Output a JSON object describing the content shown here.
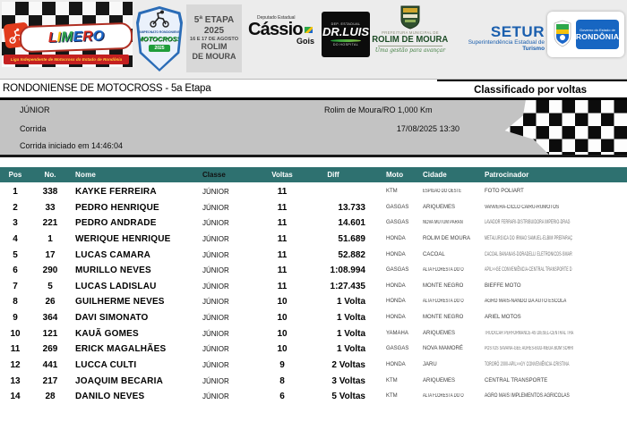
{
  "colors": {
    "teal": "#2e7170",
    "info_gray": "#c3c3c3",
    "band_gray": "#ececec",
    "limero_letters": [
      "#d42a1e",
      "#f4c20d",
      "#2da84a",
      "#1a66c9",
      "#d42a1e",
      "#1a66c9"
    ]
  },
  "header": {
    "limero": {
      "wordmark": "LIMERO",
      "tagline": "Liga Independente de Motocross do Estado de Rondônia"
    },
    "badge": {
      "arc_text": "CAMPEONATO RONDONIENSE",
      "title": "MOTOCROSS",
      "year": "2025"
    },
    "etapa": {
      "lines": [
        "5ª ETAPA",
        "2025",
        "16 E 17 DE AGOSTO",
        "ROLIM",
        "DE MOURA"
      ]
    },
    "cassio": {
      "role": "Deputado Estadual",
      "first": "Cássio",
      "last": "Gois"
    },
    "drluis": {
      "role": "DEP. ESTADUAL",
      "name": "DR.LUIS",
      "sub": "DO HOSPITAL"
    },
    "rolim": {
      "small": "PREFEITURA MUNICIPAL DE",
      "name": "ROLIM DE MOURA",
      "slogan": "Uma gestão para avançar"
    },
    "setur": {
      "name": "SETUR",
      "sub1": "Superintendência Estadual de",
      "sub2": "Turismo"
    },
    "rondonia": {
      "small": "Governo do Estado de",
      "name": "RONDÔNIA"
    }
  },
  "titlebar": {
    "left": "RONDONIENSE DE MOTOCROSS - 5a Etapa",
    "right": "Classificado por voltas"
  },
  "info": {
    "category": "JÚNIOR",
    "track": "Rolim de Moura/RO 1,000 Km",
    "session": "Corrida",
    "datetime": "17/08/2025 13:30",
    "started": "Corrida iniciado em 14:46:04"
  },
  "table": {
    "columns": [
      "Pos",
      "No.",
      "Nome",
      "Classe",
      "Voltas",
      "Diff",
      "Moto",
      "Cidade",
      "Patrocinador"
    ],
    "rows": [
      {
        "pos": "1",
        "no": "338",
        "nome": "KAYKE FERREIRA",
        "classe": "JÚNIOR",
        "voltas": "11",
        "diff": "",
        "moto": "KTM",
        "cidade": "ESPIGAO DO OESTE",
        "patrocinador": "FOTO POLIART"
      },
      {
        "pos": "2",
        "no": "33",
        "nome": "PEDRO HENRIQUE",
        "classe": "JÚNIOR",
        "voltas": "11",
        "diff": "13.733",
        "moto": "GASGAS",
        "cidade": "ARIQUEMES",
        "patrocinador": "VANVERA-CICLO CAIRU-RUMOTOS"
      },
      {
        "pos": "3",
        "no": "221",
        "nome": "PEDRO ANDRADE",
        "classe": "JÚNIOR",
        "voltas": "11",
        "diff": "14.601",
        "moto": "GASGAS",
        "cidade": "NOVA MUTUM PARAN",
        "patrocinador": "LAVADOR FERRARI-DISTRIBUIDORA IMPÉRIO-DRAG"
      },
      {
        "pos": "4",
        "no": "1",
        "nome": "WERIQUE HENRIQUE",
        "classe": "JÚNIOR",
        "voltas": "11",
        "diff": "51.689",
        "moto": "HONDA",
        "cidade": "ROLIM DE MOURA",
        "patrocinador": "METALÚRGICA DO IRMÃO SAMUEL-ELBIM PREPARAÇ"
      },
      {
        "pos": "5",
        "no": "17",
        "nome": "LUCAS CAMARA",
        "classe": "JÚNIOR",
        "voltas": "11",
        "diff": "52.882",
        "moto": "HONDA",
        "cidade": "CACOAL",
        "patrocinador": "CACOAL BANANAS-DORADELLI ELETRÔNICOS-SMAR"
      },
      {
        "pos": "6",
        "no": "290",
        "nome": "MURILLO NEVES",
        "classe": "JÚNIOR",
        "voltas": "11",
        "diff": "1:08.994",
        "moto": "GASGAS",
        "cidade": "ALTA FLORESTA DO O",
        "patrocinador": "APIL>>GE CONVENIÊNCIA-CENTRAL TRANSPORTE D"
      },
      {
        "pos": "7",
        "no": "5",
        "nome": "LUCAS LADISLAU",
        "classe": "JÚNIOR",
        "voltas": "11",
        "diff": "1:27.435",
        "moto": "HONDA",
        "cidade": "MONTE NEGRO",
        "patrocinador": "BIEFFE MOTO"
      },
      {
        "pos": "8",
        "no": "26",
        "nome": "GUILHERME NEVES",
        "classe": "JÚNIOR",
        "voltas": "10",
        "diff": "1 Volta",
        "moto": "HONDA",
        "cidade": "ALTA FLORESTA DO O",
        "patrocinador": "AGRO MAIS-NANDO DA AUTO ESCOLA"
      },
      {
        "pos": "9",
        "no": "364",
        "nome": "DAVI SIMONATO",
        "classe": "JÚNIOR",
        "voltas": "10",
        "diff": "1 Volta",
        "moto": "HONDA",
        "cidade": "MONTE NEGRO",
        "patrocinador": "ARIEL MOTOS"
      },
      {
        "pos": "10",
        "no": "121",
        "nome": "KAUÃ GOMES",
        "classe": "JÚNIOR",
        "voltas": "10",
        "diff": "1 Volta",
        "moto": "YAMAHA",
        "cidade": "ARIQUEMES",
        "patrocinador": "TRUCKCAR PERFORMANCE-4S DIESEL-CENTRAL TRA"
      },
      {
        "pos": "11",
        "no": "269",
        "nome": "ERICK MAGALHÃES",
        "classe": "JÚNIOR",
        "voltas": "10",
        "diff": "1 Volta",
        "moto": "GASGAS",
        "cidade": "NOVA MAMORÉ",
        "patrocinador": "POSTOS SAVANA-GEE AGRES-BUD-MEGA BOM SORRI"
      },
      {
        "pos": "12",
        "no": "441",
        "nome": "LUCCA CULTI",
        "classe": "JÚNIOR",
        "voltas": "9",
        "diff": "2 Voltas",
        "moto": "HONDA",
        "cidade": "JARU",
        "patrocinador": "TORORÓ 2000-APIL>>GY CONVENIÊNCIA-CRISTINA"
      },
      {
        "pos": "13",
        "no": "217",
        "nome": "JOAQUIM BECARIA",
        "classe": "JÚNIOR",
        "voltas": "8",
        "diff": "3 Voltas",
        "moto": "KTM",
        "cidade": "ARIQUEMES",
        "patrocinador": "CENTRAL TRANSPORTE"
      },
      {
        "pos": "14",
        "no": "28",
        "nome": "DANILO NEVES",
        "classe": "JÚNIOR",
        "voltas": "6",
        "diff": "5 Voltas",
        "moto": "KTM",
        "cidade": "ALTA FLORESTA DO O",
        "patrocinador": "AGRO MAIS IMPLEMENTOS AGRÍCOLAS"
      }
    ]
  }
}
